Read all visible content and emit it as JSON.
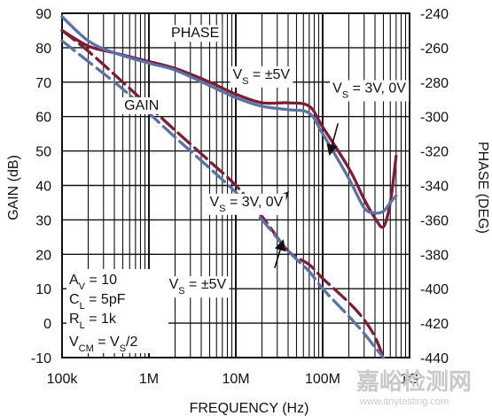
{
  "chart_data": {
    "type": "line",
    "xlabel": "FREQUENCY (Hz)",
    "ylabel": "GAIN (dB)",
    "y2label": "PHASE (DEG)",
    "x_scale": "log",
    "xlim": [
      100000,
      1000000000
    ],
    "ylim": [
      -10,
      90
    ],
    "y2lim": [
      -440,
      -240
    ],
    "grid": true,
    "x_ticks": [
      {
        "value": 100000,
        "label": "100k"
      },
      {
        "value": 1000000,
        "label": "1M"
      },
      {
        "value": 10000000,
        "label": "10M"
      },
      {
        "value": 100000000,
        "label": "100M"
      },
      {
        "value": 1000000000,
        "label": "1G"
      }
    ],
    "y_ticks": [
      -10,
      0,
      10,
      20,
      30,
      40,
      50,
      60,
      70,
      80,
      90
    ],
    "y2_ticks": [
      -440,
      -420,
      -400,
      -380,
      -360,
      -340,
      -320,
      -300,
      -280,
      -260,
      -240
    ],
    "colors": {
      "vs_5v": "#7e1d36",
      "vs_3v": "#5b72a6",
      "grid": "#111111",
      "watermark": "#c9c9c9"
    },
    "series": [
      {
        "name": "PHASE, VS = ±5V",
        "axis": "y2",
        "style": "solid",
        "color_key": "vs_5v",
        "x": [
          100000,
          200000,
          400000,
          1000000,
          2000000,
          5000000,
          10000000,
          20000000,
          40000000,
          70000000,
          100000000,
          200000000,
          300000000,
          400000000,
          500000000,
          600000000,
          700000000
        ],
        "y": [
          -250,
          -259,
          -263,
          -268,
          -272,
          -280,
          -287,
          -292,
          -292,
          -294,
          -306,
          -330,
          -348,
          -359,
          -364,
          -350,
          -323
        ]
      },
      {
        "name": "PHASE, VS = 3V, 0V",
        "axis": "y2",
        "style": "solid",
        "color_key": "vs_3v",
        "x": [
          100000,
          200000,
          400000,
          1000000,
          2000000,
          5000000,
          10000000,
          20000000,
          40000000,
          70000000,
          100000000,
          200000000,
          300000000,
          400000000,
          500000000,
          600000000,
          700000000
        ],
        "y": [
          -242,
          -256,
          -263,
          -269,
          -273,
          -282,
          -289,
          -294,
          -296,
          -298,
          -310,
          -336,
          -353,
          -356,
          -355,
          -350,
          -346
        ]
      },
      {
        "name": "GAIN, VS = ±5V",
        "axis": "y",
        "style": "dash",
        "color_key": "vs_5v",
        "x": [
          100000,
          200000,
          500000,
          1000000,
          2000000,
          5000000,
          10000000,
          20000000,
          40000000,
          70000000,
          100000000,
          200000000,
          300000000,
          400000000,
          500000000
        ],
        "y": [
          85,
          79,
          70,
          63,
          56,
          47,
          40,
          31,
          21,
          17,
          13,
          6,
          1,
          -4,
          -10
        ]
      },
      {
        "name": "GAIN, VS = 3V, 0V",
        "axis": "y",
        "style": "dash",
        "color_key": "vs_3v",
        "x": [
          100000,
          200000,
          500000,
          1000000,
          2000000,
          5000000,
          10000000,
          20000000,
          40000000,
          70000000,
          100000000,
          200000000,
          300000000,
          400000000,
          500000000
        ],
        "y": [
          82,
          76,
          68,
          61,
          54,
          45,
          38,
          30,
          21,
          15,
          10,
          2,
          -3,
          -7,
          -10
        ]
      }
    ],
    "labels": [
      {
        "text": "PHASE",
        "x": 1800000,
        "y": 83,
        "axis": "y",
        "anchor": "start"
      },
      {
        "text": "GAIN",
        "x": 520000,
        "y": 62,
        "axis": "y",
        "anchor": "start"
      },
      {
        "text_parts": [
          "V",
          "S",
          " = ±5V"
        ],
        "x": 9200000,
        "y": 71,
        "axis": "y",
        "anchor": "start"
      },
      {
        "text_parts": [
          "V",
          "S",
          " = 3V, 0V"
        ],
        "x": 130000000,
        "y": 67,
        "axis": "y",
        "anchor": "start"
      },
      {
        "text_parts": [
          "V",
          "S",
          " = 3V, 0V"
        ],
        "x": 5000000,
        "y": 34,
        "axis": "y",
        "anchor": "start"
      },
      {
        "text_parts": [
          "V",
          "S",
          " = ±5V"
        ],
        "x": 1700000,
        "y": 10,
        "axis": "y",
        "anchor": "start"
      }
    ],
    "arrows": [
      {
        "from": [
          28000000,
          34
        ],
        "to": [
          40000000,
          38
        ],
        "axis": "y"
      },
      {
        "from": [
          28000000,
          16
        ],
        "to": [
          35000000,
          24
        ],
        "axis": "y"
      },
      {
        "from": [
          150000000,
          58
        ],
        "to": [
          120000000,
          49
        ],
        "axis": "y"
      }
    ],
    "annotations": [
      {
        "parts": [
          "A",
          "V",
          " = 10"
        ]
      },
      {
        "parts": [
          "C",
          "L",
          " = 5pF"
        ]
      },
      {
        "parts": [
          "R",
          "L",
          " = 1k"
        ]
      },
      {
        "parts": [
          "V",
          "CM",
          " = V",
          "S",
          "/2"
        ]
      }
    ]
  },
  "watermark": {
    "text": "嘉峪检测网",
    "url": "www.anytesting.com"
  }
}
